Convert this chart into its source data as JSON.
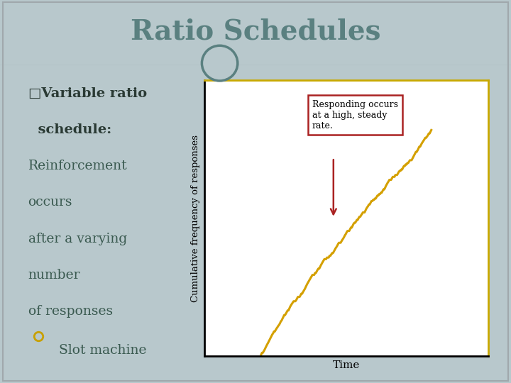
{
  "title": "Ratio Schedules",
  "title_color": "#5A8080",
  "title_fontsize": 28,
  "slide_bg": "#B8C8CC",
  "header_bg": "#FFFFFF",
  "header_border_color": "#A0B0B4",
  "content_text_color": "#3A5A50",
  "content_bold_color": "#2A3A34",
  "bullet_color": "#C8A000",
  "chart_bg": "#FFFFFF",
  "chart_border_color": "#C8A800",
  "chart_ylabel": "Cumulative frequency of responses",
  "chart_xlabel": "Time",
  "chart_line_color": "#D4A000",
  "annotation_box_edge": "#AA2222",
  "annotation_text": "Responding occurs\nat a high, steady\nrate.",
  "arrow_color": "#AA2222",
  "circle_fill": "#B8C8CC",
  "circle_edge": "#5A8080"
}
